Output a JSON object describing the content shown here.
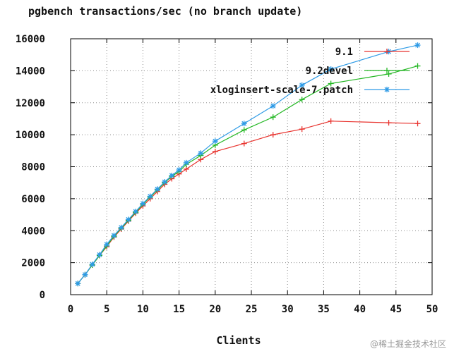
{
  "chart_data": {
    "type": "line",
    "title": "pgbench transactions/sec (no branch update)",
    "xlabel": "Clients",
    "ylabel": "",
    "xlim": [
      0,
      50
    ],
    "ylim": [
      0,
      16000
    ],
    "x_ticks": [
      0,
      5,
      10,
      15,
      20,
      25,
      30,
      35,
      40,
      45,
      50
    ],
    "y_ticks": [
      0,
      2000,
      4000,
      6000,
      8000,
      10000,
      12000,
      14000,
      16000
    ],
    "grid": true,
    "legend_position": "top-right",
    "series": [
      {
        "name": "9.1",
        "color": "#e8322d",
        "marker": "plus",
        "x": [
          1,
          2,
          3,
          4,
          5,
          6,
          7,
          8,
          9,
          10,
          11,
          12,
          13,
          14,
          15,
          16,
          18,
          20,
          24,
          28,
          32,
          36,
          44,
          48
        ],
        "y": [
          700,
          1250,
          1850,
          2450,
          3000,
          3600,
          4100,
          4600,
          5100,
          5550,
          6000,
          6450,
          6900,
          7250,
          7550,
          7850,
          8450,
          8950,
          9450,
          10000,
          10350,
          10850,
          10750,
          10700
        ]
      },
      {
        "name": "9.2devel",
        "color": "#22b722",
        "marker": "plus",
        "x": [
          1,
          2,
          3,
          4,
          5,
          6,
          7,
          8,
          9,
          10,
          11,
          12,
          13,
          14,
          15,
          16,
          18,
          20,
          24,
          28,
          32,
          36,
          44,
          48
        ],
        "y": [
          700,
          1250,
          1850,
          2450,
          3050,
          3650,
          4150,
          4650,
          5150,
          5650,
          6100,
          6550,
          7000,
          7400,
          7700,
          8150,
          8700,
          9350,
          10300,
          11100,
          12200,
          13200,
          13800,
          14300
        ]
      },
      {
        "name": "xloginsert-scale-7.patch",
        "color": "#2e9be6",
        "marker": "star",
        "x": [
          1,
          2,
          3,
          4,
          5,
          6,
          7,
          8,
          9,
          10,
          11,
          12,
          13,
          14,
          15,
          16,
          18,
          20,
          24,
          28,
          32,
          36,
          44,
          48
        ],
        "y": [
          700,
          1250,
          1900,
          2500,
          3150,
          3700,
          4200,
          4700,
          5200,
          5700,
          6150,
          6600,
          7050,
          7450,
          7800,
          8250,
          8850,
          9600,
          10700,
          11800,
          13100,
          14100,
          15200,
          15600
        ]
      }
    ]
  },
  "watermark": "@稀土掘金技术社区"
}
